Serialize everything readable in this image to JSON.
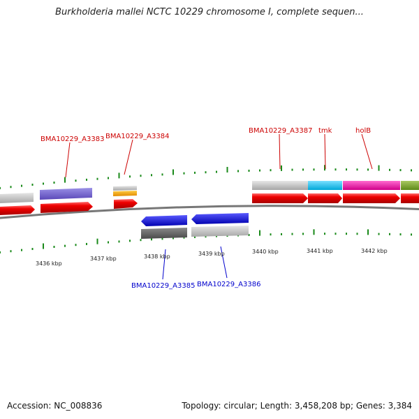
{
  "header": {
    "title": "Burkholderia mallei NCTC 10229 chromosome I, complete sequen..."
  },
  "footer": {
    "accession": "Accession: NC_008836",
    "stats": "Topology: circular; Length: 3,458,208 bp; Genes: 3,384"
  },
  "colors": {
    "forward_label": "#cc0000",
    "reverse_label": "#0000cc",
    "cds_red": "#ee0000",
    "tick_green": "#1a8a1a",
    "backbone": "#777777"
  },
  "scale_labels": [
    "3436 kbp",
    "3437 kbp",
    "3438 kbp",
    "3439 kbp",
    "3440 kbp",
    "3441 kbp",
    "3442 kbp"
  ],
  "forward_gene_labels": [
    "BMA10229_A3383",
    "BMA10229_A3384",
    "BMA10229_A3387",
    "tmk",
    "holB"
  ],
  "reverse_gene_labels": [
    "BMA10229_A3385",
    "BMA10229_A3386"
  ]
}
